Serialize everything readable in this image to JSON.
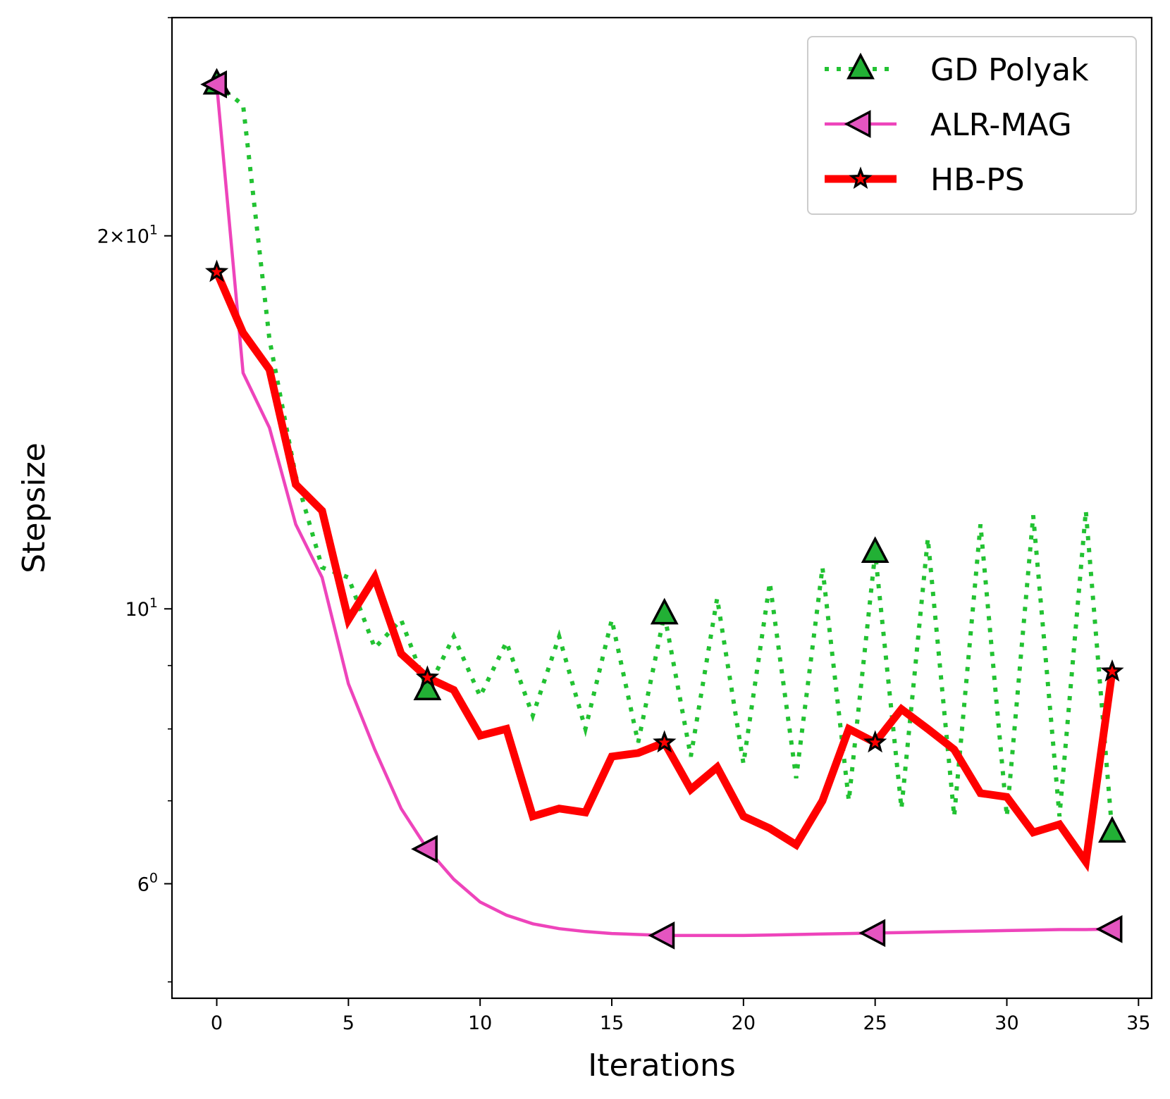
{
  "chart_data": {
    "type": "line",
    "title": "",
    "xlabel": "Iterations",
    "ylabel": "Stepsize",
    "yscale": "log",
    "xlim": [
      -1.7,
      35.5
    ],
    "ylim": [
      4.85,
      30.0
    ],
    "xticks": [
      {
        "value": 0,
        "label": "0"
      },
      {
        "value": 5,
        "label": "5"
      },
      {
        "value": 10,
        "label": "10"
      },
      {
        "value": 15,
        "label": "15"
      },
      {
        "value": 20,
        "label": "20"
      },
      {
        "value": 25,
        "label": "25"
      },
      {
        "value": 30,
        "label": "30"
      },
      {
        "value": 35,
        "label": "35"
      }
    ],
    "yticks": [
      {
        "value": 6,
        "base": "6",
        "sup": "0"
      },
      {
        "value": 10,
        "base": "10",
        "sup": "1"
      },
      {
        "value": 20,
        "base": "2",
        "sup": "1",
        "mult": true
      }
    ],
    "grid": false,
    "legend_position": "top-right",
    "series": [
      {
        "name": "GD Polyak",
        "color": "#22c232",
        "style": "dotted",
        "marker": "triangle-up",
        "marker_color": "#22b035",
        "markevery": [
          0,
          8,
          17,
          25,
          34
        ],
        "x": [
          0,
          1,
          2,
          3,
          4,
          5,
          6,
          7,
          8,
          9,
          10,
          11,
          12,
          13,
          14,
          15,
          16,
          17,
          18,
          19,
          20,
          21,
          22,
          23,
          24,
          25,
          26,
          27,
          28,
          29,
          30,
          31,
          32,
          33,
          34
        ],
        "values": [
          26.5,
          25.5,
          16.5,
          12.8,
          10.8,
          10.6,
          9.3,
          9.8,
          8.6,
          9.5,
          8.5,
          9.4,
          8.2,
          9.5,
          8.0,
          9.8,
          7.8,
          9.9,
          7.6,
          10.2,
          7.5,
          10.5,
          7.3,
          10.8,
          7.0,
          11.1,
          6.9,
          11.4,
          6.8,
          11.7,
          6.8,
          11.9,
          6.8,
          12.0,
          6.6
        ]
      },
      {
        "name": "ALR-MAG",
        "color": "#ee44bb",
        "style": "solid",
        "marker": "triangle-left",
        "marker_color": "#e455c0",
        "markevery": [
          0,
          8,
          17,
          25,
          34
        ],
        "x": [
          0,
          1,
          2,
          3,
          4,
          5,
          6,
          7,
          8,
          9,
          10,
          11,
          12,
          13,
          14,
          15,
          16,
          17,
          18,
          19,
          20,
          21,
          22,
          23,
          24,
          25,
          26,
          27,
          28,
          29,
          30,
          31,
          32,
          33,
          34
        ],
        "values": [
          26.5,
          15.5,
          14.0,
          11.7,
          10.6,
          8.7,
          7.7,
          6.9,
          6.4,
          6.05,
          5.8,
          5.66,
          5.57,
          5.52,
          5.49,
          5.47,
          5.46,
          5.45,
          5.45,
          5.45,
          5.45,
          5.455,
          5.46,
          5.465,
          5.47,
          5.475,
          5.48,
          5.485,
          5.49,
          5.495,
          5.5,
          5.505,
          5.51,
          5.51,
          5.515
        ]
      },
      {
        "name": "HB-PS",
        "color": "#ff0000",
        "style": "solid",
        "marker": "star",
        "marker_color": "#ff0000",
        "markevery": [
          0,
          8,
          17,
          25,
          34
        ],
        "x": [
          0,
          1,
          2,
          3,
          4,
          5,
          6,
          7,
          8,
          9,
          10,
          11,
          12,
          13,
          14,
          15,
          16,
          17,
          18,
          19,
          20,
          21,
          22,
          23,
          24,
          25,
          26,
          27,
          28,
          29,
          30,
          31,
          32,
          33,
          34
        ],
        "values": [
          18.7,
          16.7,
          15.6,
          12.6,
          12.0,
          9.8,
          10.6,
          9.2,
          8.8,
          8.6,
          7.9,
          8.0,
          6.8,
          6.9,
          6.85,
          7.6,
          7.65,
          7.8,
          7.15,
          7.45,
          6.8,
          6.65,
          6.45,
          7.0,
          8.0,
          7.8,
          8.3,
          8.0,
          7.7,
          7.1,
          7.05,
          6.6,
          6.7,
          6.25,
          8.9
        ]
      }
    ]
  }
}
